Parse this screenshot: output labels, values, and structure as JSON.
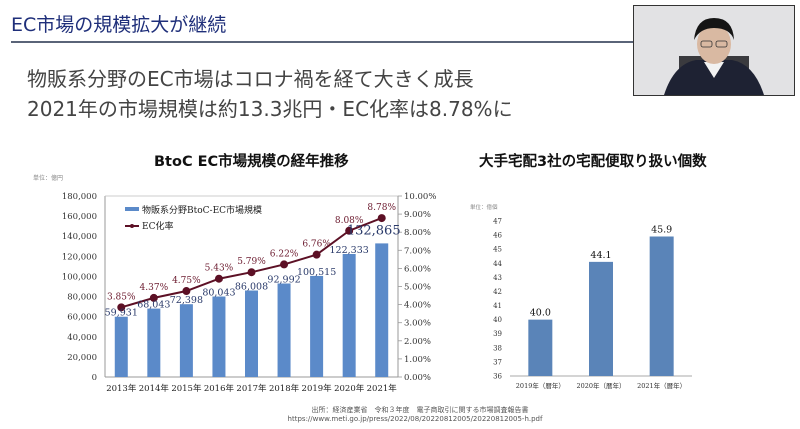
{
  "slide": {
    "title": "EC市場の規模拡大が継続",
    "bullets": [
      "物販系分野のEC市場はコロナ禍を経て大きく成長",
      "2021年の市場規模は約13.3兆円・EC化率は8.78%に"
    ],
    "source_line1": "出所：経済産業省　令和３年度　電子商取引に関する市場調査報告書",
    "source_line2": "https://www.meti.go.jp/press/2022/08/20220812005/20220812005-h.pdf"
  },
  "colors": {
    "title": "#1f2f7a",
    "bar": "#5b8ac9",
    "bar_right": "#5a84b8",
    "line": "#5c1025",
    "bar_label": "#2a3a6a",
    "line_label": "#6b1a2e"
  },
  "chart_data": [
    {
      "type": "bar+line",
      "title": "BtoC EC市場規模の経年推移",
      "unit_label": "単位：億円",
      "categories": [
        "2013年",
        "2014年",
        "2015年",
        "2016年",
        "2017年",
        "2018年",
        "2019年",
        "2020年",
        "2021年"
      ],
      "series": [
        {
          "name": "物販系分野BtoC-EC市場規模",
          "type": "bar",
          "axis": "left",
          "values": [
            59931,
            68043,
            72398,
            80043,
            86008,
            92992,
            100515,
            122333,
            132865
          ],
          "labels": [
            "59,931",
            "68,043",
            "72,398",
            "80,043",
            "86,008",
            "92,992",
            "100,515",
            "122,333",
            "132,865"
          ]
        },
        {
          "name": "EC化率",
          "type": "line",
          "axis": "right",
          "values": [
            3.85,
            4.37,
            4.75,
            5.43,
            5.79,
            6.22,
            6.76,
            8.08,
            8.78
          ],
          "labels": [
            "3.85%",
            "4.37%",
            "4.75%",
            "5.43%",
            "5.79%",
            "6.22%",
            "6.76%",
            "8.08%",
            "8.78%"
          ]
        }
      ],
      "y_left": {
        "range": [
          0,
          180000
        ],
        "ticks": [
          "0",
          "20,000",
          "40,000",
          "60,000",
          "80,000",
          "100,000",
          "120,000",
          "140,000",
          "160,000",
          "180,000"
        ]
      },
      "y_right": {
        "range": [
          0,
          10
        ],
        "ticks": [
          "0.00%",
          "1.00%",
          "2.00%",
          "3.00%",
          "4.00%",
          "5.00%",
          "6.00%",
          "7.00%",
          "8.00%",
          "9.00%",
          "10.00%"
        ]
      },
      "legend": "top-left",
      "grid": false
    },
    {
      "type": "bar",
      "title": "大手宅配3社の宅配便取り扱い個数",
      "unit_label": "単位：億個",
      "categories": [
        "2019年（暦年）",
        "2020年（暦年）",
        "2021年（暦年）"
      ],
      "values": [
        40.0,
        44.1,
        45.9
      ],
      "labels": [
        "40.0",
        "44.1",
        "45.9"
      ],
      "ylim": [
        36,
        47
      ],
      "y_ticks": [
        "36",
        "37",
        "38",
        "39",
        "40",
        "41",
        "42",
        "43",
        "44",
        "45",
        "46",
        "47"
      ],
      "grid": false
    }
  ]
}
